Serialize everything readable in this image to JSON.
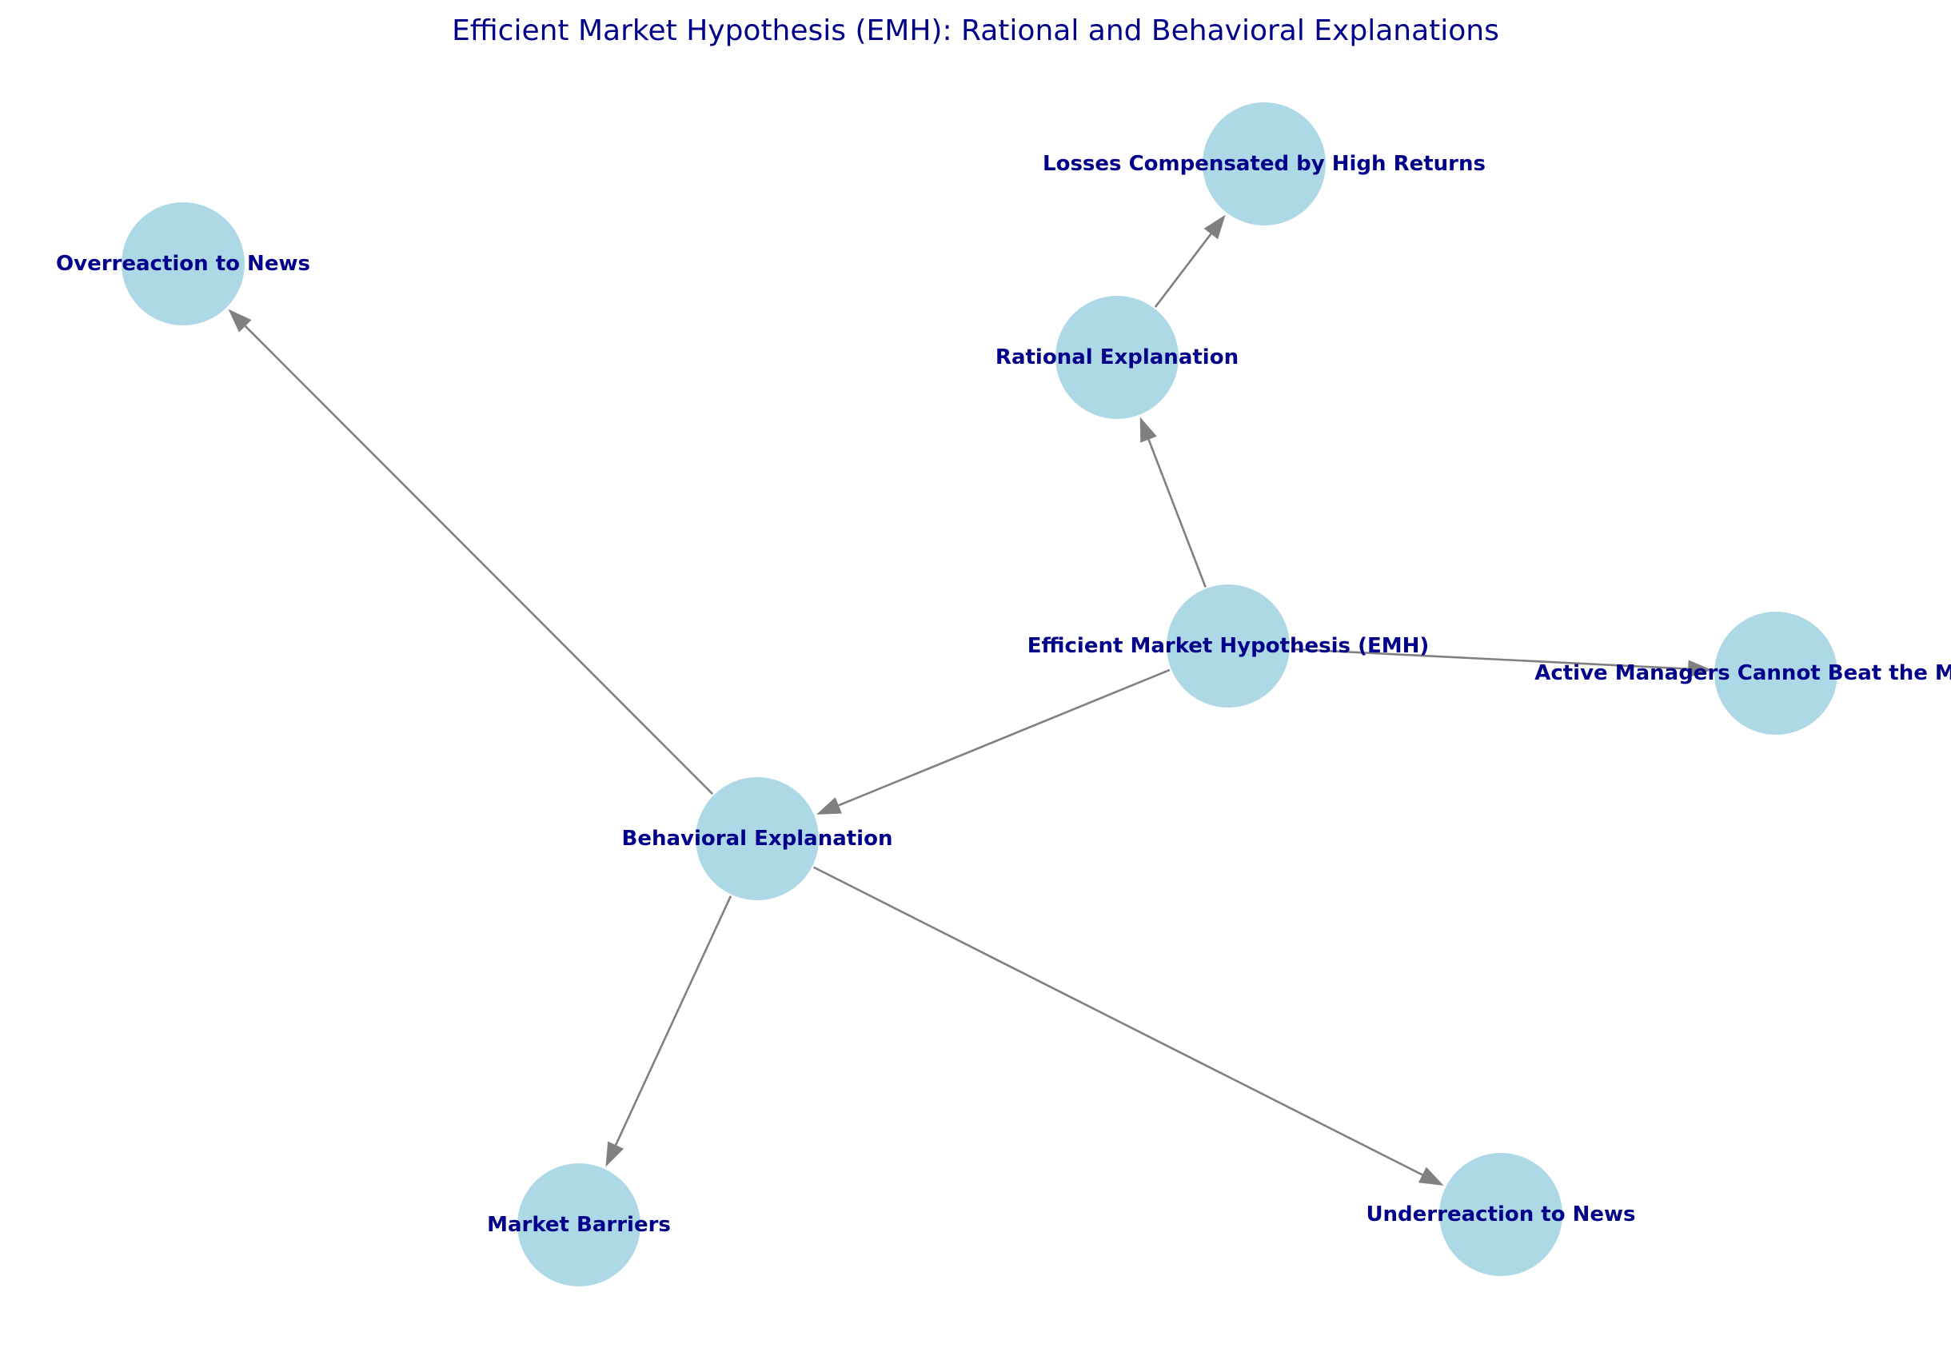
{
  "diagram": {
    "title": "Efficient Market Hypothesis (EMH): Rational and Behavioral Explanations",
    "colors": {
      "node_fill": "#add8e6",
      "label": "#00008b",
      "edge": "#808080",
      "title": "#00008b"
    },
    "nodes": [
      {
        "id": "emh",
        "label": "Efficient Market Hypothesis (EMH)"
      },
      {
        "id": "rational",
        "label": "Rational Explanation"
      },
      {
        "id": "losses",
        "label": "Losses Compensated by High Returns"
      },
      {
        "id": "active",
        "label": "Active Managers Cannot Beat the Market"
      },
      {
        "id": "behavioral",
        "label": "Behavioral Explanation"
      },
      {
        "id": "overreaction",
        "label": "Overreaction to News"
      },
      {
        "id": "barriers",
        "label": "Market Barriers"
      },
      {
        "id": "underreaction",
        "label": "Underreaction to News"
      }
    ],
    "edges": [
      {
        "from": "emh",
        "to": "rational"
      },
      {
        "from": "emh",
        "to": "behavioral"
      },
      {
        "from": "emh",
        "to": "active"
      },
      {
        "from": "rational",
        "to": "losses"
      },
      {
        "from": "behavioral",
        "to": "overreaction"
      },
      {
        "from": "behavioral",
        "to": "barriers"
      },
      {
        "from": "behavioral",
        "to": "underreaction"
      }
    ]
  }
}
